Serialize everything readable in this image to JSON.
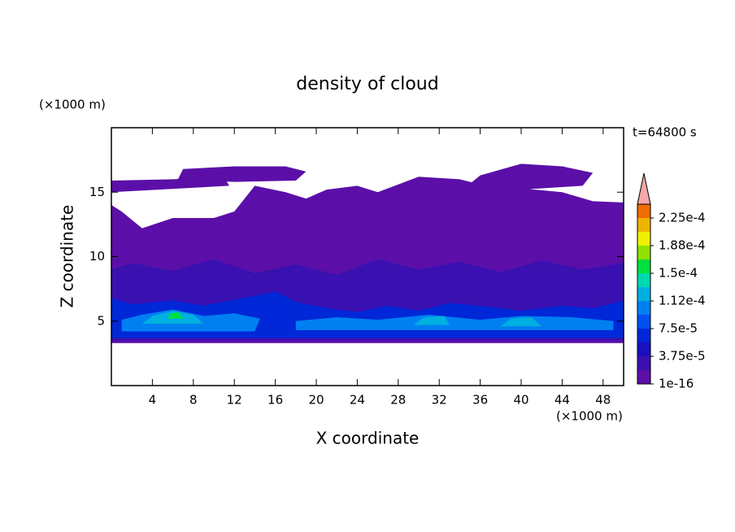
{
  "chart_data": {
    "type": "contour",
    "title": "density of cloud",
    "x_label": "X coordinate",
    "y_label": "Z coordinate",
    "x_unit": "(×1000 m)",
    "y_unit": "(×1000 m)",
    "annotation": "t=64800 s",
    "xlim": [
      0,
      50
    ],
    "ylim": [
      0,
      20
    ],
    "xticks": [
      4,
      8,
      12,
      16,
      20,
      24,
      28,
      32,
      36,
      40,
      44,
      48
    ],
    "yticks": [
      5,
      10,
      15
    ],
    "colorbar": {
      "levels": [
        1e-16,
        1.875e-05,
        3.75e-05,
        5.625e-05,
        7.5e-05,
        9.375e-05,
        0.0001125,
        0.00013125,
        0.00015,
        0.00016875,
        0.0001875,
        0.00020625,
        0.000225,
        0.00024375
      ],
      "colors": [
        "#5b0fa8",
        "#3a10b0",
        "#1a10c0",
        "#0028d8",
        "#0050f0",
        "#0080f0",
        "#00b0e0",
        "#00d8b0",
        "#00e040",
        "#90e000",
        "#f0f000",
        "#f0b400",
        "#f06c00",
        "#f00000"
      ],
      "extend_color": "#f4a8a8",
      "ticks": [
        {
          "value": 1e-16,
          "label": "1e-16"
        },
        {
          "value": 3.75e-05,
          "label": "3.75e-5"
        },
        {
          "value": 7.5e-05,
          "label": "7.5e-5"
        },
        {
          "value": 0.0001125,
          "label": "1.12e-4"
        },
        {
          "value": 0.00015,
          "label": "1.5e-4"
        },
        {
          "value": 0.0001875,
          "label": "1.88e-4"
        },
        {
          "value": 0.000225,
          "label": "2.25e-4"
        }
      ]
    },
    "regions": [
      {
        "level": 0,
        "x": [
          0,
          50,
          50,
          47,
          44,
          40,
          36,
          34,
          30,
          28,
          26,
          24,
          21,
          19,
          17,
          14,
          12,
          10,
          6,
          3,
          1,
          0
        ],
        "z": [
          3.3,
          3.3,
          14.2,
          14.3,
          15,
          15.3,
          15.6,
          16,
          16.2,
          15.6,
          15,
          15.5,
          15.2,
          14.5,
          15,
          15.5,
          13.5,
          13,
          13,
          12.2,
          13.5,
          14
        ]
      },
      {
        "level": 0,
        "x": [
          0,
          7,
          11.5,
          11,
          6,
          0
        ],
        "z": [
          15,
          15.3,
          15.5,
          16.2,
          16,
          15.9
        ]
      },
      {
        "level": 0,
        "x": [
          6.5,
          12,
          18,
          19,
          17,
          12,
          7
        ],
        "z": [
          16,
          15.8,
          15.9,
          16.6,
          17,
          17,
          16.8
        ]
      },
      {
        "level": 0,
        "x": [
          34,
          40,
          46,
          47,
          44,
          40,
          36
        ],
        "z": [
          15,
          15.2,
          15.5,
          16.5,
          17,
          17.2,
          16.3
        ]
      },
      {
        "level": 1,
        "x": [
          0,
          50,
          50,
          46,
          42,
          38,
          34,
          30,
          26,
          22,
          18,
          14,
          10,
          6,
          2,
          0
        ],
        "z": [
          3.5,
          3.5,
          9.5,
          9,
          9.7,
          8.8,
          9.6,
          9,
          9.8,
          8.6,
          9.4,
          8.7,
          9.8,
          8.9,
          9.5,
          9
        ]
      },
      {
        "level": 3,
        "x": [
          0,
          50,
          50,
          47,
          44,
          40,
          37,
          33,
          30,
          27,
          24,
          21,
          18,
          16,
          13,
          9,
          6,
          2,
          0
        ],
        "z": [
          3.7,
          3.7,
          6.6,
          6,
          6.2,
          5.8,
          6.1,
          6.4,
          5.8,
          6.2,
          5.7,
          6,
          6.5,
          7.3,
          6.8,
          6.2,
          6.6,
          6.3,
          6.8
        ]
      },
      {
        "level": 5,
        "x": [
          1,
          14,
          14.5,
          12,
          9,
          6,
          3,
          1
        ],
        "z": [
          4.2,
          4.2,
          5.2,
          5.6,
          5.4,
          5.9,
          5.5,
          5.1
        ]
      },
      {
        "level": 5,
        "x": [
          18,
          49,
          49,
          45,
          40,
          36,
          31,
          26,
          22,
          18
        ],
        "z": [
          4.3,
          4.3,
          5,
          5.3,
          5.4,
          5.1,
          5.5,
          5.1,
          5.3,
          5
        ]
      },
      {
        "level": 6,
        "x": [
          3,
          9,
          8,
          6,
          4
        ],
        "z": [
          4.8,
          4.8,
          5.5,
          5.8,
          5.4
        ]
      },
      {
        "level": 6,
        "x": [
          29.5,
          33,
          32.5,
          30.5
        ],
        "z": [
          4.7,
          4.7,
          5.4,
          5.3
        ]
      },
      {
        "level": 6,
        "x": [
          38,
          42,
          41,
          39
        ],
        "z": [
          4.6,
          4.6,
          5.3,
          5.2
        ]
      },
      {
        "level": 8,
        "x": [
          5.5,
          7,
          6.5,
          5.8
        ],
        "z": [
          5.2,
          5.2,
          5.7,
          5.6
        ]
      }
    ]
  }
}
